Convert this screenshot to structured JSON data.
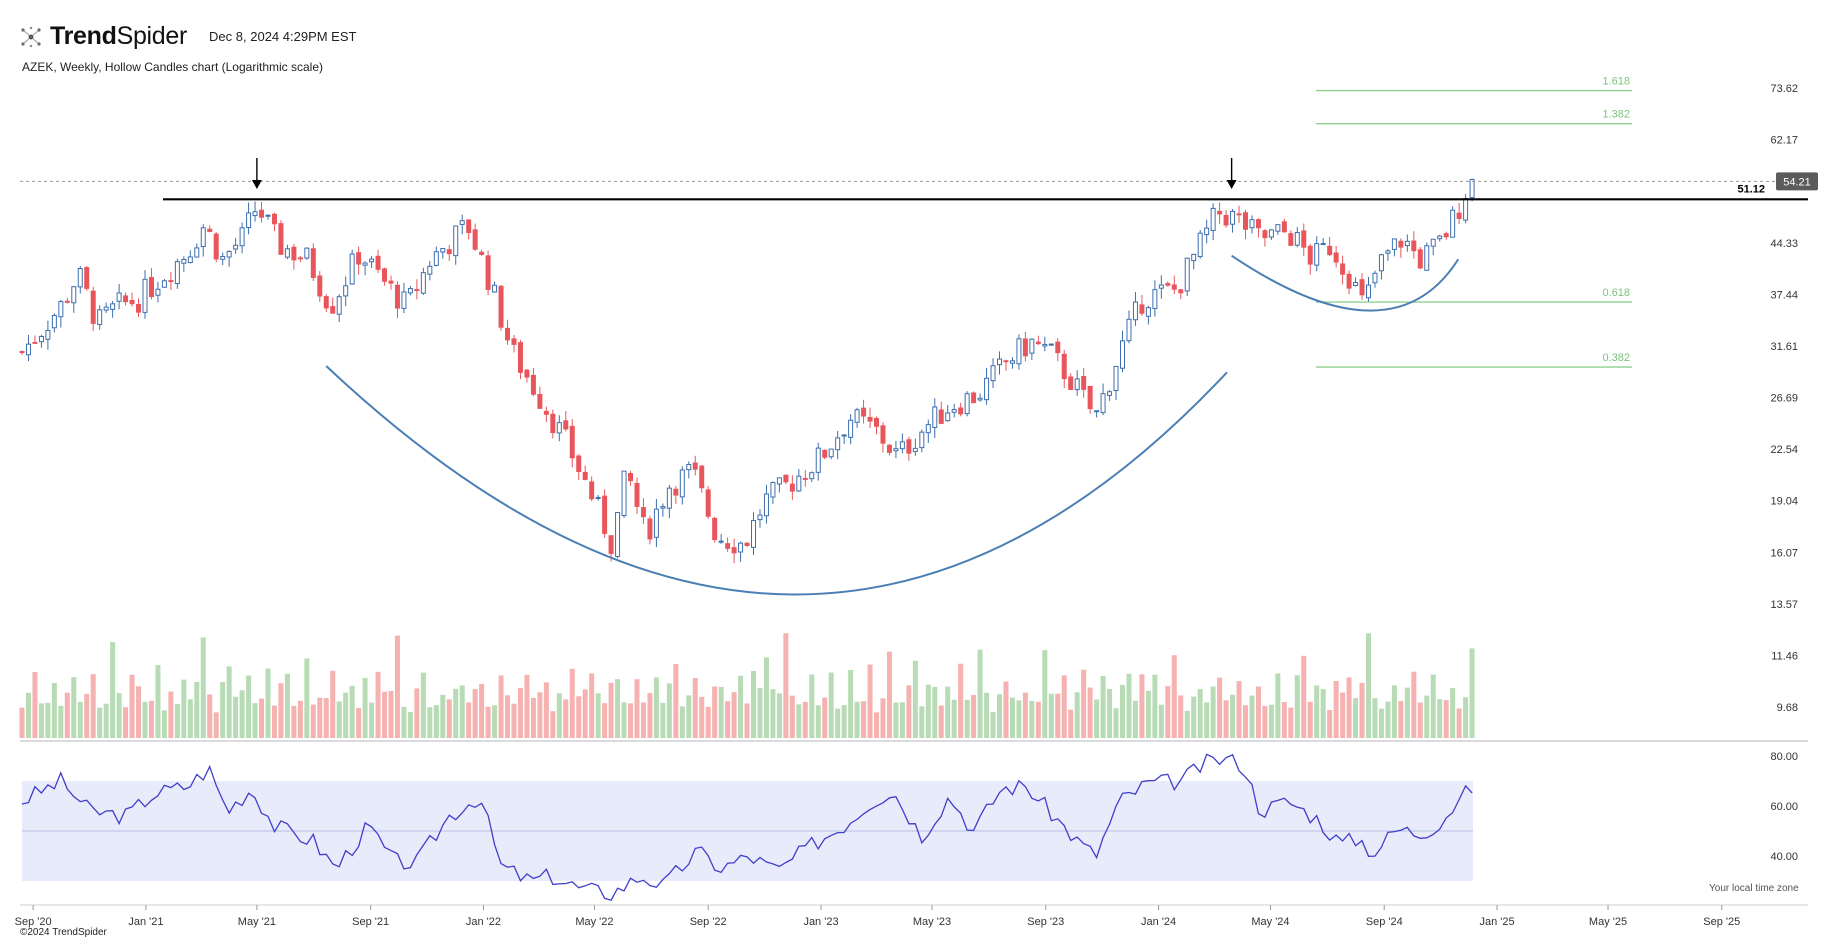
{
  "header": {
    "brand_bold": "Trend",
    "brand_light": "Spider",
    "timestamp": "Dec 8, 2024 4:29PM EST",
    "subtitle": "AZEK, Weekly, Hollow Candles chart (Logarithmic scale)"
  },
  "footer": {
    "copyright": "©2024 TrendSpider",
    "timezone_note": "Your local time zone"
  },
  "colors": {
    "up": "#3d6fae",
    "down": "#e8565c",
    "vol_up": "#b7dcb5",
    "vol_down": "#f6b2b0",
    "rsi_line": "#3f3fc9",
    "rsi_band": "#e8ebfa",
    "arc": "#4a7fb5",
    "fib": "#8fd08f",
    "resistance": "#000000"
  },
  "chart_data": {
    "type": "candlestick",
    "ticker": "AZEK",
    "interval": "Weekly",
    "style": "Hollow Candles",
    "scale": "logarithmic",
    "price_ticks": [
      "73.62",
      "62.17",
      "44.33",
      "37.44",
      "31.61",
      "26.69",
      "22.54",
      "19.04",
      "16.07",
      "13.57",
      "11.46",
      "9.68"
    ],
    "rsi_ticks": [
      "80.00",
      "60.00",
      "40.00"
    ],
    "x_ticks": [
      "Sep '20",
      "Jan '21",
      "May '21",
      "Sep '21",
      "Jan '22",
      "May '22",
      "Sep '22",
      "Jan '23",
      "May '23",
      "Sep '23",
      "Jan '24",
      "May '24",
      "Sep '24",
      "Jan '25",
      "May '25",
      "Sep '25"
    ],
    "last_price": "54.21",
    "last_price_value": 54.21,
    "resistance_label": "51.12",
    "resistance_value": 51.12,
    "rsi_band": [
      30,
      70
    ],
    "fib_levels": [
      {
        "label": "1.618",
        "price": 73.0
      },
      {
        "label": "1.382",
        "price": 65.5
      },
      {
        "label": "0.618",
        "price": 36.5
      },
      {
        "label": "0.382",
        "price": 29.5
      }
    ],
    "arcs": [
      {
        "name": "cup",
        "from": [
          "2021-07-15",
          29.6
        ],
        "bottom": [
          "2022-12-01",
          14.0
        ],
        "to": [
          "2024-03-15",
          29.0
        ]
      },
      {
        "name": "handle",
        "from": [
          "2024-03-20",
          42.5
        ],
        "bottom": [
          "2024-08-15",
          35.5
        ],
        "to": [
          "2024-11-20",
          42.0
        ]
      }
    ],
    "arrows": [
      {
        "date": "2021-05-01"
      },
      {
        "date": "2024-03-20"
      }
    ],
    "weekly_closes": [
      {
        "d": "2020-08-20",
        "c": 31
      },
      {
        "d": "2020-10-01",
        "c": 36
      },
      {
        "d": "2020-10-20",
        "c": 40
      },
      {
        "d": "2020-11-10",
        "c": 34
      },
      {
        "d": "2020-12-01",
        "c": 36
      },
      {
        "d": "2020-12-25",
        "c": 37
      },
      {
        "d": "2021-01-20",
        "c": 40
      },
      {
        "d": "2021-02-15",
        "c": 43
      },
      {
        "d": "2021-03-05",
        "c": 47
      },
      {
        "d": "2021-03-25",
        "c": 42
      },
      {
        "d": "2021-04-15",
        "c": 45
      },
      {
        "d": "2021-05-01",
        "c": 50
      },
      {
        "d": "2021-05-25",
        "c": 44
      },
      {
        "d": "2021-06-25",
        "c": 42
      },
      {
        "d": "2021-07-20",
        "c": 36
      },
      {
        "d": "2021-08-20",
        "c": 43
      },
      {
        "d": "2021-09-15",
        "c": 39
      },
      {
        "d": "2021-10-10",
        "c": 36
      },
      {
        "d": "2021-11-05",
        "c": 42
      },
      {
        "d": "2021-12-15",
        "c": 47
      },
      {
        "d": "2022-01-05",
        "c": 40
      },
      {
        "d": "2022-02-01",
        "c": 31
      },
      {
        "d": "2022-03-01",
        "c": 27
      },
      {
        "d": "2022-04-01",
        "c": 23
      },
      {
        "d": "2022-05-01",
        "c": 19
      },
      {
        "d": "2022-05-20",
        "c": 16.5
      },
      {
        "d": "2022-06-05",
        "c": 21
      },
      {
        "d": "2022-06-25",
        "c": 17
      },
      {
        "d": "2022-07-20",
        "c": 20
      },
      {
        "d": "2022-08-15",
        "c": 21
      },
      {
        "d": "2022-09-10",
        "c": 17
      },
      {
        "d": "2022-10-10",
        "c": 16.5
      },
      {
        "d": "2022-11-01",
        "c": 19
      },
      {
        "d": "2022-11-25",
        "c": 20
      },
      {
        "d": "2023-01-01",
        "c": 22
      },
      {
        "d": "2023-02-01",
        "c": 25
      },
      {
        "d": "2023-03-01",
        "c": 24
      },
      {
        "d": "2023-03-25",
        "c": 22
      },
      {
        "d": "2023-04-20",
        "c": 24
      },
      {
        "d": "2023-05-20",
        "c": 26
      },
      {
        "d": "2023-06-20",
        "c": 27
      },
      {
        "d": "2023-07-20",
        "c": 30
      },
      {
        "d": "2023-08-15",
        "c": 32
      },
      {
        "d": "2023-09-05",
        "c": 31
      },
      {
        "d": "2023-10-01",
        "c": 28
      },
      {
        "d": "2023-10-25",
        "c": 25
      },
      {
        "d": "2023-11-20",
        "c": 31
      },
      {
        "d": "2023-12-15",
        "c": 37
      },
      {
        "d": "2024-01-20",
        "c": 38
      },
      {
        "d": "2024-02-15",
        "c": 44
      },
      {
        "d": "2024-03-05",
        "c": 49
      },
      {
        "d": "2024-03-25",
        "c": 48
      },
      {
        "d": "2024-04-20",
        "c": 45
      },
      {
        "d": "2024-05-20",
        "c": 46
      },
      {
        "d": "2024-06-15",
        "c": 42
      },
      {
        "d": "2024-07-05",
        "c": 44
      },
      {
        "d": "2024-07-25",
        "c": 40
      },
      {
        "d": "2024-08-10",
        "c": 36
      },
      {
        "d": "2024-08-25",
        "c": 41
      },
      {
        "d": "2024-09-20",
        "c": 45
      },
      {
        "d": "2024-10-10",
        "c": 42
      },
      {
        "d": "2024-10-30",
        "c": 44
      },
      {
        "d": "2024-11-15",
        "c": 48
      },
      {
        "d": "2024-11-29",
        "c": 53
      },
      {
        "d": "2024-12-06",
        "c": 54.2
      }
    ],
    "rsi_points": [
      {
        "d": "2020-08-20",
        "v": 62
      },
      {
        "d": "2020-10-01",
        "v": 70
      },
      {
        "d": "2020-11-01",
        "v": 58
      },
      {
        "d": "2020-12-10",
        "v": 56
      },
      {
        "d": "2021-01-10",
        "v": 65
      },
      {
        "d": "2021-02-15",
        "v": 68
      },
      {
        "d": "2021-03-10",
        "v": 75
      },
      {
        "d": "2021-03-30",
        "v": 58
      },
      {
        "d": "2021-04-25",
        "v": 67
      },
      {
        "d": "2021-05-20",
        "v": 52
      },
      {
        "d": "2021-07-01",
        "v": 46
      },
      {
        "d": "2021-07-25",
        "v": 35
      },
      {
        "d": "2021-08-30",
        "v": 52
      },
      {
        "d": "2021-09-25",
        "v": 38
      },
      {
        "d": "2021-10-20",
        "v": 37
      },
      {
        "d": "2021-11-25",
        "v": 56
      },
      {
        "d": "2021-12-28",
        "v": 64
      },
      {
        "d": "2022-01-20",
        "v": 36
      },
      {
        "d": "2022-02-20",
        "v": 30
      },
      {
        "d": "2022-03-15",
        "v": 32
      },
      {
        "d": "2022-04-15",
        "v": 27
      },
      {
        "d": "2022-05-20",
        "v": 25
      },
      {
        "d": "2022-06-20",
        "v": 32
      },
      {
        "d": "2022-07-15",
        "v": 28
      },
      {
        "d": "2022-08-20",
        "v": 42
      },
      {
        "d": "2022-09-15",
        "v": 35
      },
      {
        "d": "2022-10-15",
        "v": 40
      },
      {
        "d": "2022-11-15",
        "v": 34
      },
      {
        "d": "2022-12-20",
        "v": 44
      },
      {
        "d": "2023-01-25",
        "v": 52
      },
      {
        "d": "2023-02-25",
        "v": 62
      },
      {
        "d": "2023-03-20",
        "v": 66
      },
      {
        "d": "2023-04-20",
        "v": 48
      },
      {
        "d": "2023-05-20",
        "v": 64
      },
      {
        "d": "2023-06-15",
        "v": 50
      },
      {
        "d": "2023-07-15",
        "v": 67
      },
      {
        "d": "2023-08-10",
        "v": 68
      },
      {
        "d": "2023-09-05",
        "v": 58
      },
      {
        "d": "2023-10-05",
        "v": 46
      },
      {
        "d": "2023-10-25",
        "v": 40
      },
      {
        "d": "2023-11-20",
        "v": 62
      },
      {
        "d": "2023-12-20",
        "v": 69
      },
      {
        "d": "2024-01-25",
        "v": 70
      },
      {
        "d": "2024-02-20",
        "v": 77
      },
      {
        "d": "2024-03-10",
        "v": 79
      },
      {
        "d": "2024-04-01",
        "v": 77
      },
      {
        "d": "2024-04-20",
        "v": 58
      },
      {
        "d": "2024-05-20",
        "v": 62
      },
      {
        "d": "2024-06-20",
        "v": 55
      },
      {
        "d": "2024-07-15",
        "v": 45
      },
      {
        "d": "2024-08-05",
        "v": 47
      },
      {
        "d": "2024-08-20",
        "v": 41
      },
      {
        "d": "2024-09-15",
        "v": 51
      },
      {
        "d": "2024-10-10",
        "v": 49
      },
      {
        "d": "2024-10-30",
        "v": 53
      },
      {
        "d": "2024-11-20",
        "v": 62
      },
      {
        "d": "2024-12-06",
        "v": 68
      }
    ],
    "volume_pattern": [
      0.18,
      0.35,
      0.55,
      0.22,
      0.3,
      0.42,
      0.2,
      0.28,
      0.6,
      0.25,
      0.33,
      0.48,
      0.18,
      0.26,
      0.7,
      0.3,
      0.22,
      0.4,
      0.55,
      0.24,
      0.36,
      0.5,
      0.2,
      0.45,
      0.3,
      0.62,
      0.28,
      0.38,
      0.8,
      0.25
    ]
  }
}
